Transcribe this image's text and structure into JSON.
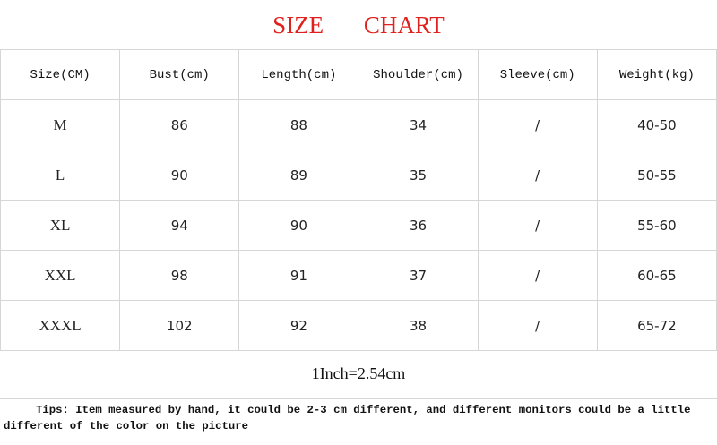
{
  "header": {
    "title": "SIZE CHART"
  },
  "table": {
    "columns": [
      "Size(CM)",
      "Bust(cm)",
      "Length(cm)",
      "Shoulder(cm)",
      "Sleeve(cm)",
      "Weight(kg)"
    ],
    "rows": [
      [
        "M",
        "86",
        "88",
        "34",
        "/",
        "40-50"
      ],
      [
        "L",
        "90",
        "89",
        "35",
        "/",
        "50-55"
      ],
      [
        "XL",
        "94",
        "90",
        "36",
        "/",
        "55-60"
      ],
      [
        "XXL",
        "98",
        "91",
        "37",
        "/",
        "60-65"
      ],
      [
        "XXXL",
        "102",
        "92",
        "38",
        "/",
        "65-72"
      ]
    ]
  },
  "conversion": "1Inch=2.54cm",
  "tips": "Tips: Item measured by hand, it could be 2-3 cm different, and different monitors could be a little different of the color on the picture"
}
